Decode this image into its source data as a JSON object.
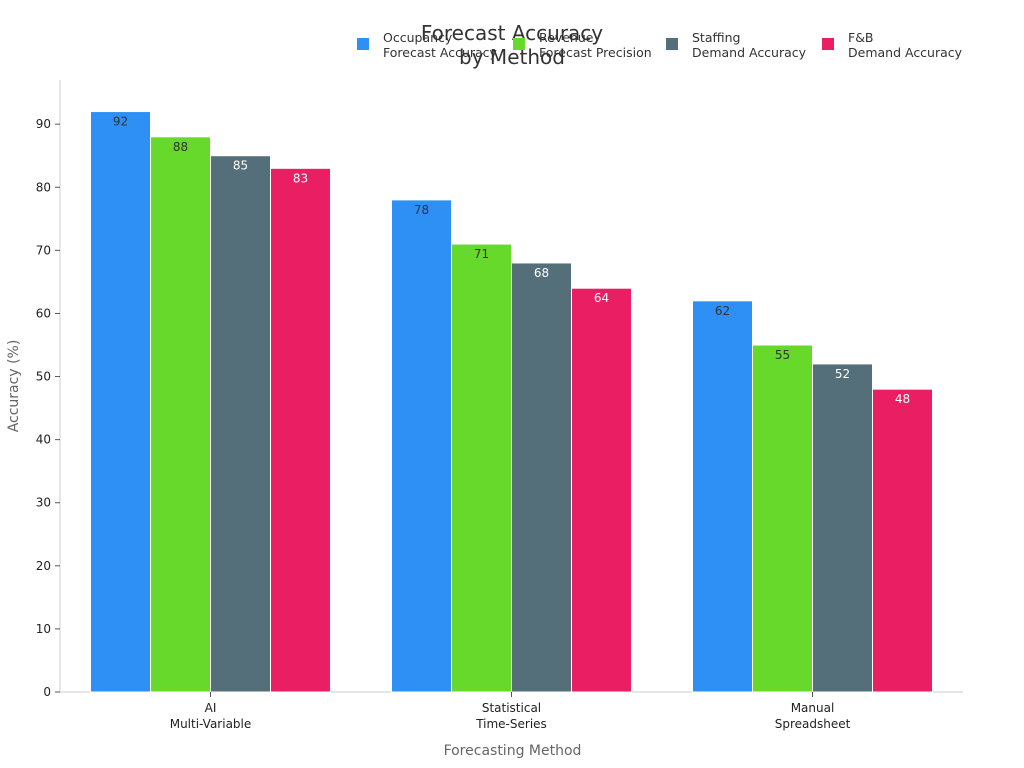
{
  "chart_data": {
    "type": "bar",
    "title": "Forecast Accuracy\nby Method",
    "xlabel": "Forecasting Method",
    "ylabel": "Accuracy (%)",
    "ylim": [
      0,
      97
    ],
    "yticks": [
      0,
      10,
      20,
      30,
      40,
      50,
      60,
      70,
      80,
      90
    ],
    "categories": [
      "AI\nMulti-Variable",
      "Statistical\nTime-Series",
      "Manual\nSpreadsheet"
    ],
    "series": [
      {
        "name": "Occupancy\nForecast Accuracy",
        "color": "#2E90F5",
        "label_color": "#333333",
        "values": [
          92,
          78,
          62
        ]
      },
      {
        "name": "Revenue\nForecast Precision",
        "color": "#66D92A",
        "label_color": "#333333",
        "values": [
          88,
          71,
          55
        ]
      },
      {
        "name": "Staffing\nDemand Accuracy",
        "color": "#546E7A",
        "label_color": "#ffffff",
        "values": [
          85,
          68,
          52
        ]
      },
      {
        "name": "F&B\nDemand Accuracy",
        "color": "#E91E63",
        "label_color": "#ffffff",
        "values": [
          83,
          64,
          48
        ]
      }
    ],
    "grid": false,
    "legend_position": "top-right"
  }
}
